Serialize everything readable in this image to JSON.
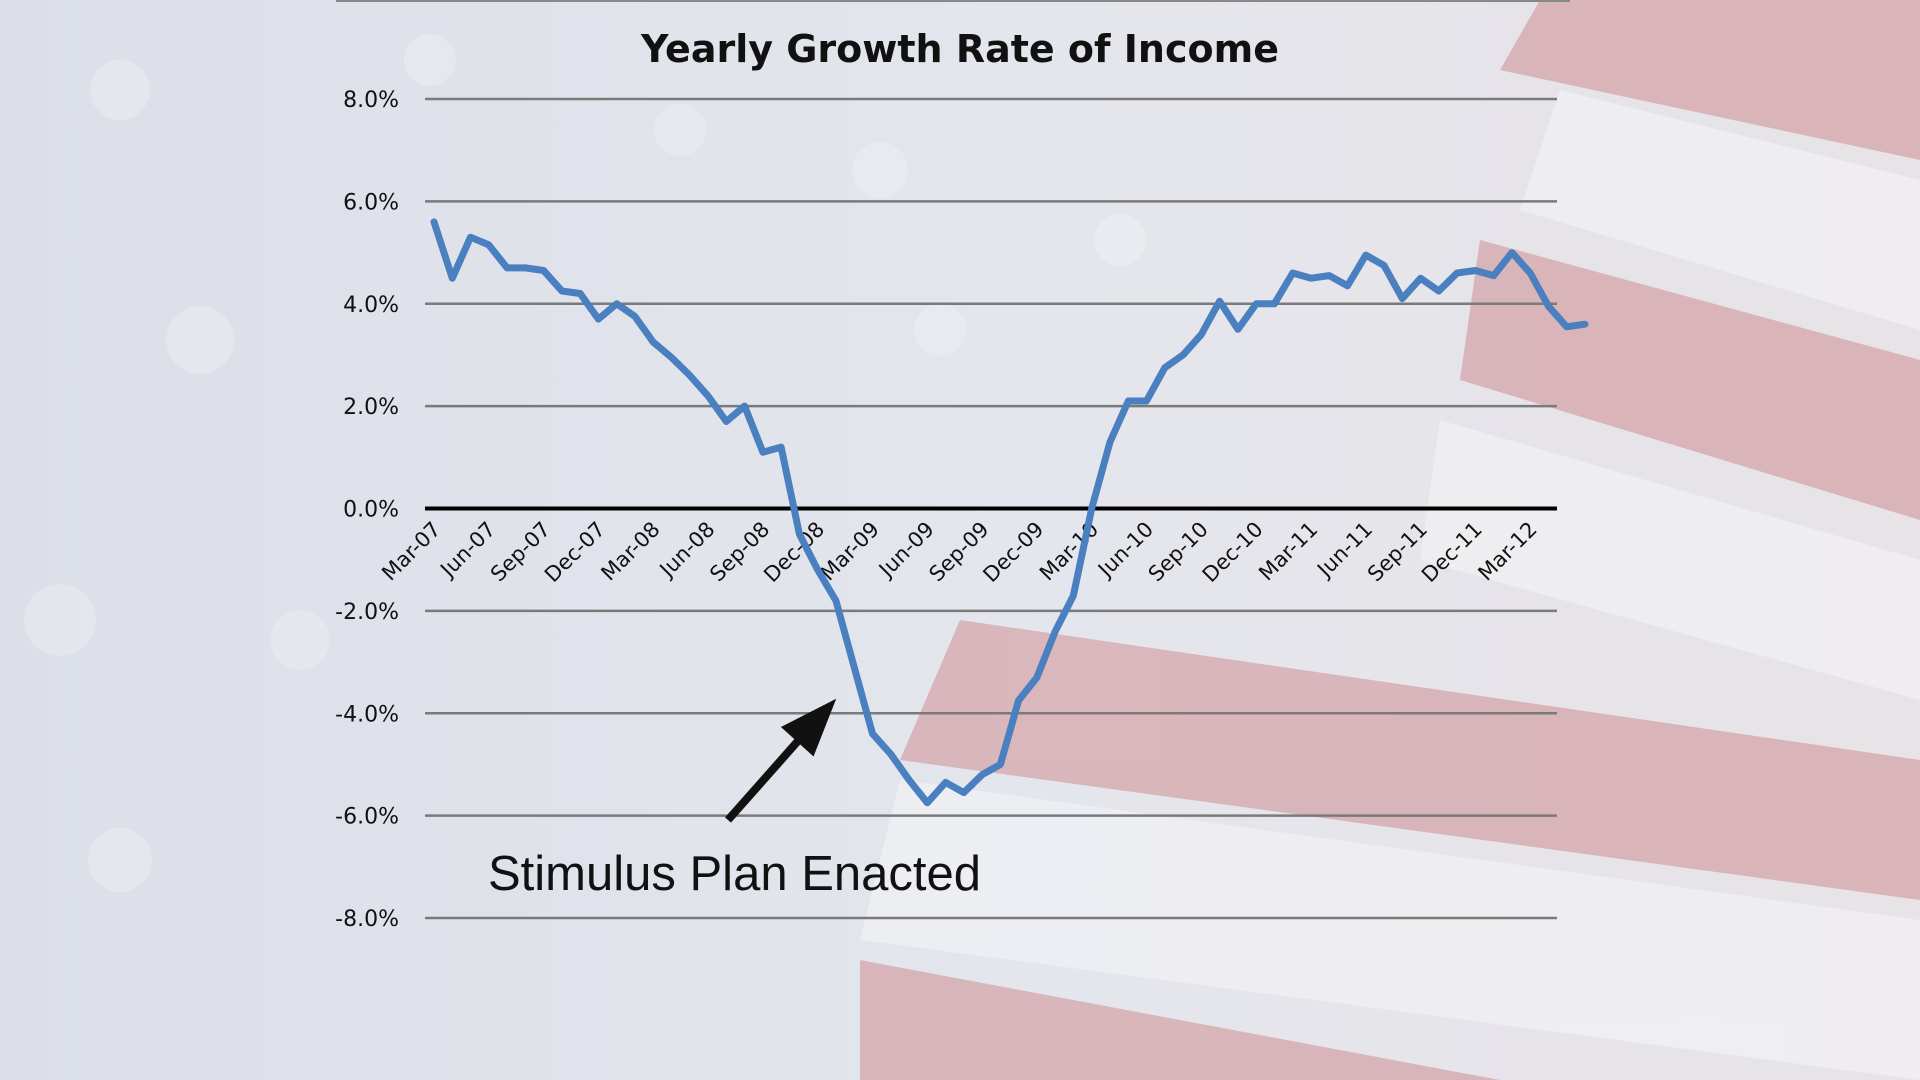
{
  "colors": {
    "line": "#4a7fc0",
    "grid": "#7a7a7a",
    "zero_axis": "#000000",
    "text": "#111111",
    "flag_red": "#cf8f93",
    "flag_white": "#f6f6f8",
    "flag_blue": "#c9cedd"
  },
  "background": {
    "description_icon": "american-flag-background"
  },
  "chart_data": {
    "type": "line",
    "title": "Yearly Growth Rate of Income",
    "xlabel": "",
    "ylabel": "",
    "ylim": [
      -8,
      8
    ],
    "y_ticks": [
      8,
      6,
      4,
      2,
      0,
      -2,
      -4,
      -6,
      -8
    ],
    "y_tick_labels": [
      "8.0%",
      "6.0%",
      "4.0%",
      "2.0%",
      "0.0%",
      "-2.0%",
      "-4.0%",
      "-6.0%",
      "-8.0%"
    ],
    "x_tick_labels": [
      "Mar-07",
      "Jun-07",
      "Sep-07",
      "Dec-07",
      "Mar-08",
      "Jun-08",
      "Sep-08",
      "Dec-08",
      "Mar-09",
      "Jun-09",
      "Sep-09",
      "Dec-09",
      "Mar-10",
      "Jun-10",
      "Sep-10",
      "Dec-10",
      "Mar-11",
      "Jun-11",
      "Sep-11",
      "Dec-11",
      "Mar-12"
    ],
    "grid": true,
    "series": [
      {
        "x": [
          "Mar-07",
          "Apr-07",
          "May-07",
          "Jun-07",
          "Jul-07",
          "Aug-07",
          "Sep-07",
          "Oct-07",
          "Nov-07",
          "Dec-07",
          "Jan-08",
          "Feb-08",
          "Mar-08",
          "Apr-08",
          "May-08",
          "Jun-08",
          "Jul-08",
          "Aug-08",
          "Sep-08",
          "Oct-08",
          "Nov-08",
          "Dec-08",
          "Jan-09",
          "Feb-09",
          "Mar-09",
          "Apr-09",
          "May-09",
          "Jun-09",
          "Jul-09",
          "Aug-09",
          "Sep-09",
          "Oct-09",
          "Nov-09",
          "Dec-09",
          "Jan-10",
          "Feb-10",
          "Mar-10",
          "Apr-10",
          "May-10",
          "Jun-10",
          "Jul-10",
          "Aug-10",
          "Sep-10",
          "Oct-10",
          "Nov-10",
          "Dec-10",
          "Jan-11",
          "Feb-11",
          "Mar-11",
          "Apr-11",
          "May-11",
          "Jun-11",
          "Jul-11",
          "Aug-11",
          "Sep-11",
          "Oct-11",
          "Nov-11",
          "Dec-11",
          "Jan-12",
          "Feb-12",
          "Mar-12",
          "Apr-12",
          "May-12",
          "Jun-12"
        ],
        "values": [
          5.6,
          4.5,
          5.3,
          5.15,
          4.7,
          4.7,
          4.65,
          4.25,
          4.2,
          3.7,
          4.0,
          3.75,
          3.25,
          2.95,
          2.6,
          2.2,
          1.7,
          2.0,
          1.1,
          1.2,
          -0.5,
          -1.2,
          -1.8,
          -3.1,
          -4.4,
          -4.8,
          -5.3,
          -5.75,
          -5.35,
          -5.55,
          -5.2,
          -5.0,
          -3.75,
          -3.3,
          -2.4,
          -1.7,
          0.0,
          1.3,
          2.1,
          2.1,
          2.75,
          3.0,
          3.4,
          4.05,
          3.5,
          4.0,
          4.0,
          4.6,
          4.5,
          4.55,
          4.35,
          4.95,
          4.75,
          4.1,
          4.5,
          4.25,
          4.6,
          4.65,
          4.55,
          5.0,
          4.6,
          3.95,
          3.55,
          3.6
        ]
      }
    ],
    "annotations": [
      {
        "text": "Stimulus Plan Enacted",
        "arrow_target_x": "Feb-09",
        "arrow_target_y": -3.6
      }
    ]
  }
}
